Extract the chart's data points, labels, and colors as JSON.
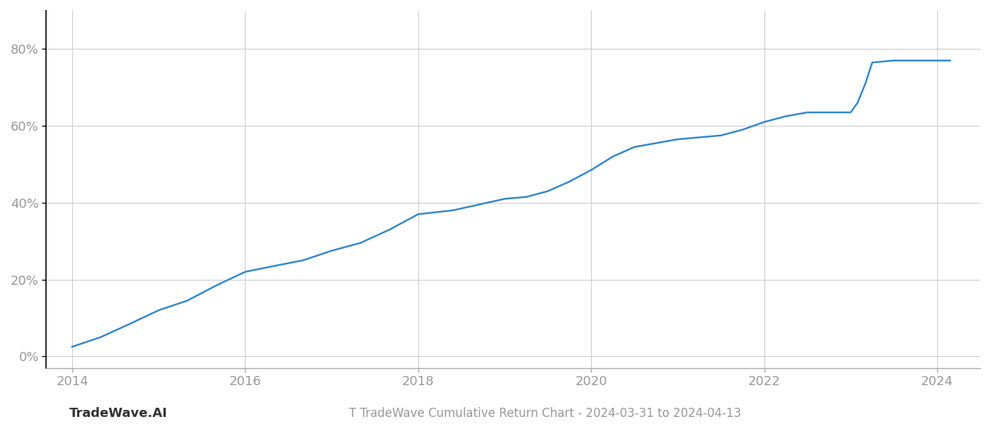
{
  "x_years": [
    2014.0,
    2014.33,
    2014.67,
    2015.0,
    2015.33,
    2015.67,
    2016.0,
    2016.33,
    2016.67,
    2017.0,
    2017.33,
    2017.67,
    2018.0,
    2018.2,
    2018.4,
    2018.6,
    2018.8,
    2019.0,
    2019.25,
    2019.5,
    2019.75,
    2020.0,
    2020.25,
    2020.5,
    2020.75,
    2021.0,
    2021.25,
    2021.5,
    2021.75,
    2022.0,
    2022.25,
    2022.5,
    2022.75,
    2023.0,
    2023.08,
    2023.17,
    2023.25,
    2023.5,
    2023.75,
    2024.0,
    2024.15
  ],
  "y_values": [
    2.5,
    5.0,
    8.5,
    12.0,
    14.5,
    18.5,
    22.0,
    23.5,
    25.0,
    27.5,
    29.5,
    33.0,
    37.0,
    37.5,
    38.0,
    39.0,
    40.0,
    41.0,
    41.5,
    43.0,
    45.5,
    48.5,
    52.0,
    54.5,
    55.5,
    56.5,
    57.0,
    57.5,
    59.0,
    61.0,
    62.5,
    63.5,
    63.5,
    63.5,
    66.0,
    71.0,
    76.5,
    77.0,
    77.0,
    77.0,
    77.0
  ],
  "line_color": "#3388cc",
  "line_width": 1.8,
  "background_color": "#ffffff",
  "grid_color": "#cccccc",
  "title": "T TradeWave Cumulative Return Chart - 2024-03-31 to 2024-04-13",
  "watermark": "TradeWave.AI",
  "xlim": [
    2013.7,
    2024.5
  ],
  "ylim": [
    -3,
    90
  ],
  "xticks": [
    2014,
    2016,
    2018,
    2020,
    2022,
    2024
  ],
  "yticks": [
    0,
    20,
    40,
    60,
    80
  ],
  "ytick_labels": [
    "0%",
    "20%",
    "40%",
    "60%",
    "80%"
  ],
  "title_fontsize": 12,
  "tick_fontsize": 13,
  "watermark_fontsize": 13,
  "tick_color": "#999999",
  "spine_color": "#aaaaaa",
  "left_spine_color": "#000000"
}
